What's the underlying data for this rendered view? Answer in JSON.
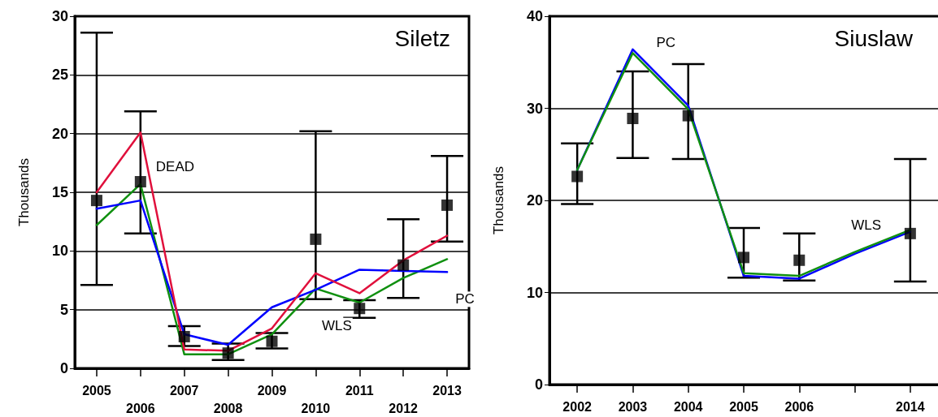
{
  "chart_data": [
    {
      "type": "line",
      "title": "Siletz",
      "ylabel": "Thousands",
      "categories": [
        "2005",
        "2006",
        "2007",
        "2008",
        "2009",
        "2010",
        "2011",
        "2012",
        "2013"
      ],
      "ylim": [
        0,
        30
      ],
      "yticks": [
        0,
        5,
        10,
        15,
        20,
        25,
        30
      ],
      "grid": "y",
      "legend": false,
      "series": [
        {
          "name": "WLS",
          "color": "#109010",
          "values": [
            12.2,
            15.7,
            1.2,
            1.2,
            2.9,
            6.8,
            5.6,
            7.7,
            9.3
          ]
        },
        {
          "name": "PC",
          "color": "#0000ff",
          "values": [
            13.6,
            14.3,
            2.9,
            2.0,
            5.2,
            6.7,
            8.4,
            8.3,
            8.2
          ]
        },
        {
          "name": "DEAD",
          "color": "#e0103c",
          "values": [
            15.0,
            20.1,
            1.6,
            1.5,
            3.4,
            8.1,
            6.4,
            9.2,
            11.3
          ]
        },
        {
          "type": "scatter",
          "color": "#000000",
          "marker": "square",
          "values": [
            14.3,
            15.9,
            2.7,
            1.3,
            2.3,
            11.0,
            5.1,
            8.8,
            13.9
          ],
          "errors": [
            [
              7.1,
              28.6
            ],
            [
              11.5,
              21.9
            ],
            [
              1.9,
              3.6
            ],
            [
              0.7,
              2.1
            ],
            [
              1.7,
              3.0
            ],
            [
              5.9,
              20.2
            ],
            [
              4.3,
              5.8
            ],
            [
              6.0,
              12.7
            ],
            [
              10.8,
              18.1
            ]
          ]
        }
      ]
    },
    {
      "type": "line",
      "title": "Siuslaw",
      "ylabel": "Thousands",
      "categories": [
        "2002",
        "2003",
        "2004",
        "2005",
        "2006",
        null,
        "2014"
      ],
      "ylim": [
        0,
        40
      ],
      "yticks": [
        0,
        10,
        20,
        30,
        40
      ],
      "grid": "y",
      "legend": false,
      "series": [
        {
          "name": "PC",
          "color": "#0000ff",
          "values": [
            23.3,
            36.4,
            30.3,
            11.8,
            11.5,
            14.2,
            16.6
          ]
        },
        {
          "name": "WLS",
          "color": "#109010",
          "values": [
            23.3,
            36.0,
            29.9,
            12.1,
            11.8,
            14.4,
            16.8
          ]
        },
        {
          "type": "scatter",
          "color": "#000000",
          "marker": "square",
          "values": [
            22.6,
            28.9,
            29.2,
            13.8,
            13.5,
            null,
            16.4
          ],
          "errors": [
            [
              19.6,
              26.2
            ],
            [
              24.6,
              34.0
            ],
            [
              24.5,
              34.8
            ],
            [
              11.6,
              17.0
            ],
            [
              11.3,
              16.4
            ],
            null,
            [
              11.2,
              24.5
            ]
          ]
        }
      ]
    }
  ]
}
